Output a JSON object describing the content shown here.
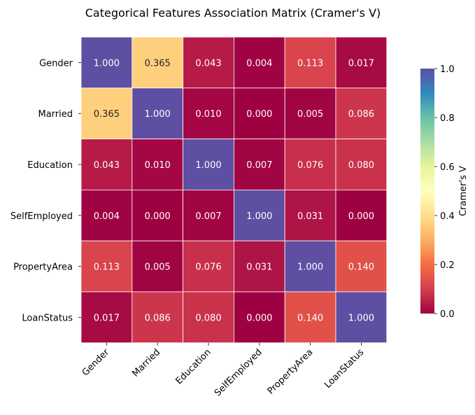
{
  "chart_data": {
    "type": "heatmap",
    "title": "Categorical Features Association Matrix (Cramer's V)",
    "x_categories": [
      "Gender",
      "Married",
      "Education",
      "SelfEmployed",
      "PropertyArea",
      "LoanStatus"
    ],
    "y_categories": [
      "Gender",
      "Married",
      "Education",
      "SelfEmployed",
      "PropertyArea",
      "LoanStatus"
    ],
    "values": [
      [
        1.0,
        0.365,
        0.043,
        0.004,
        0.113,
        0.017
      ],
      [
        0.365,
        1.0,
        0.01,
        0.0,
        0.005,
        0.086
      ],
      [
        0.043,
        0.01,
        1.0,
        0.007,
        0.076,
        0.08
      ],
      [
        0.004,
        0.0,
        0.007,
        1.0,
        0.031,
        0.0
      ],
      [
        0.113,
        0.005,
        0.076,
        0.031,
        1.0,
        0.14
      ],
      [
        0.017,
        0.086,
        0.08,
        0.0,
        0.14,
        1.0
      ]
    ],
    "value_format": "0.000",
    "colormap": "Spectral",
    "colormap_stops": [
      "#9e0142",
      "#d53e4f",
      "#f46d43",
      "#fdae61",
      "#fee08b",
      "#ffffbf",
      "#e6f598",
      "#abdda4",
      "#66c2a5",
      "#3288bd",
      "#5e4fa2"
    ],
    "colorbar": {
      "label": "Cramer's V",
      "range": [
        0,
        1
      ],
      "ticks": [
        "0.0",
        "0.2",
        "0.4",
        "0.6",
        "0.8",
        "1.0"
      ]
    },
    "grid_line_color": "#ffffff"
  }
}
